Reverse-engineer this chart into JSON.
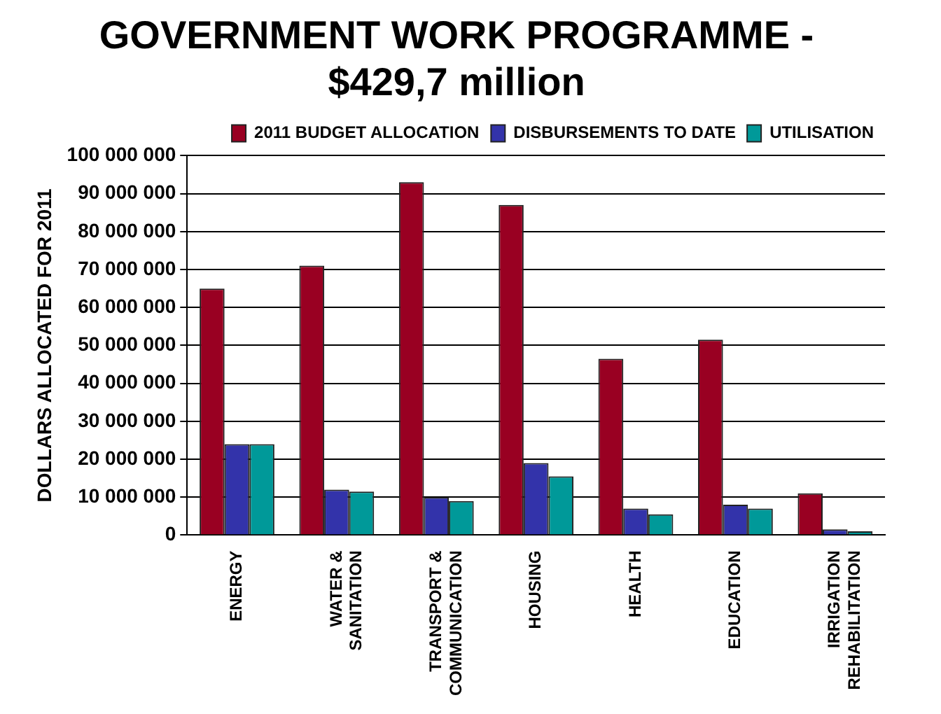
{
  "chart_data": {
    "type": "bar",
    "title": "GOVERNMENT WORK PROGRAMME - $429,7 million",
    "ylabel": "DOLLARS ALLOCATED FOR 2011",
    "categories": [
      "ENERGY",
      "WATER & SANITATION",
      "TRANSPORT & COMMUNICATION",
      "HOUSING",
      "HEALTH",
      "EDUCATION",
      "IRRIGATION REHABILITATION"
    ],
    "series": [
      {
        "name": "2011 BUDGET ALLOCATION",
        "color": "#990022",
        "values": [
          65000000,
          71000000,
          93000000,
          87000000,
          46500000,
          51500000,
          11000000
        ]
      },
      {
        "name": "DISBURSEMENTS TO DATE",
        "color": "#3333aa",
        "values": [
          24000000,
          12000000,
          10000000,
          19000000,
          7000000,
          8000000,
          1500000
        ]
      },
      {
        "name": "UTILISATION",
        "color": "#009999",
        "values": [
          24000000,
          11500000,
          9000000,
          15500000,
          5500000,
          7000000,
          1000000
        ]
      }
    ],
    "ylim": [
      0,
      100000000
    ],
    "yticks": [
      {
        "value": 0,
        "label": "0"
      },
      {
        "value": 10000000,
        "label": "10 000 000"
      },
      {
        "value": 20000000,
        "label": "20 000 000"
      },
      {
        "value": 30000000,
        "label": "30 000 000"
      },
      {
        "value": 40000000,
        "label": "40 000 000"
      },
      {
        "value": 50000000,
        "label": "50 000 000"
      },
      {
        "value": 60000000,
        "label": "60 000 000"
      },
      {
        "value": 70000000,
        "label": "70 000 000"
      },
      {
        "value": 80000000,
        "label": "80 000 000"
      },
      {
        "value": 90000000,
        "label": "90 000 000"
      },
      {
        "value": 100000000,
        "label": "100 000 000"
      }
    ],
    "grid": "y",
    "legend": "top right"
  }
}
